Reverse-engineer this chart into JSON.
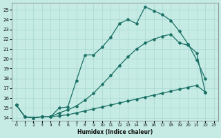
{
  "xlabel": "Humidex (Indice chaleur)",
  "bg_color": "#c5ebe4",
  "grid_color": "#a8d8d0",
  "line_color": "#1a7065",
  "xlim_min": -0.5,
  "xlim_max": 23.5,
  "ylim_min": 13.7,
  "ylim_max": 25.7,
  "yticks": [
    14,
    15,
    16,
    17,
    18,
    19,
    20,
    21,
    22,
    23,
    24,
    25
  ],
  "xticks": [
    0,
    1,
    2,
    3,
    4,
    5,
    6,
    7,
    8,
    9,
    10,
    11,
    12,
    13,
    14,
    15,
    16,
    17,
    18,
    19,
    20,
    21,
    22,
    23
  ],
  "curve1_x": [
    0,
    1,
    2,
    3,
    4,
    5,
    6,
    7,
    8,
    9,
    10,
    11,
    12,
    13,
    14,
    15,
    16,
    17,
    18,
    19,
    20,
    21,
    22
  ],
  "curve1_y": [
    15.3,
    14.1,
    14.0,
    14.1,
    14.1,
    15.0,
    15.1,
    17.8,
    20.4,
    20.4,
    21.2,
    22.2,
    23.6,
    24.0,
    23.6,
    25.3,
    24.9,
    24.5,
    23.9,
    22.8,
    21.5,
    19.9,
    18.0
  ],
  "curve2_x": [
    0,
    1,
    2,
    3,
    4,
    5,
    6,
    7,
    8,
    9,
    10,
    11,
    12,
    13,
    14,
    15,
    16,
    17,
    18,
    19,
    20,
    21,
    22
  ],
  "curve2_y": [
    15.3,
    14.1,
    14.0,
    14.1,
    14.1,
    14.5,
    14.8,
    15.2,
    15.8,
    16.5,
    17.4,
    18.3,
    19.3,
    20.2,
    21.0,
    21.6,
    22.0,
    22.3,
    22.5,
    21.6,
    21.4,
    20.6,
    16.6
  ],
  "curve3_x": [
    0,
    1,
    2,
    3,
    4,
    5,
    6,
    7,
    8,
    9,
    10,
    11,
    12,
    13,
    14,
    15,
    16,
    17,
    18,
    19,
    20,
    21,
    22
  ],
  "curve3_y": [
    15.3,
    14.1,
    14.0,
    14.1,
    14.1,
    14.2,
    14.3,
    14.5,
    14.7,
    14.9,
    15.1,
    15.3,
    15.5,
    15.7,
    15.9,
    16.1,
    16.3,
    16.5,
    16.7,
    16.9,
    17.1,
    17.3,
    16.6
  ],
  "marker_size": 2.2,
  "line_width": 0.9
}
